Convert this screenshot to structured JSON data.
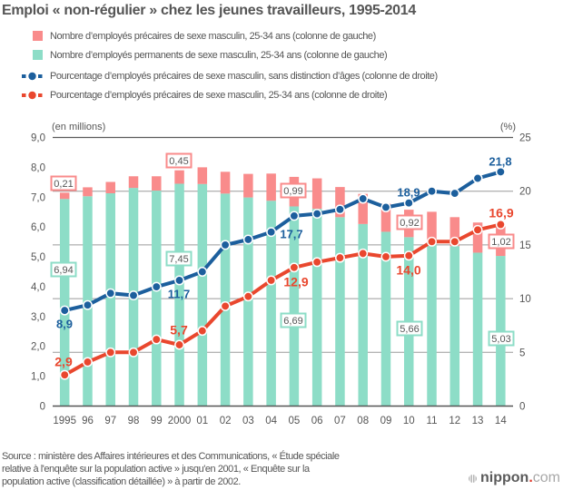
{
  "chart_data": {
    "type": "bar",
    "subtype": "stacked-bar-with-lines",
    "title": "Emploi « non-régulier » chez les jeunes travailleurs, 1995-2014",
    "categories": [
      "1995",
      "96",
      "97",
      "98",
      "99",
      "2000",
      "01",
      "02",
      "03",
      "04",
      "05",
      "06",
      "07",
      "08",
      "09",
      "10",
      "11",
      "12",
      "13",
      "14"
    ],
    "x": [
      1995,
      1996,
      1997,
      1998,
      1999,
      2000,
      2001,
      2002,
      2003,
      2004,
      2005,
      2006,
      2007,
      2008,
      2009,
      2010,
      2011,
      2012,
      2013,
      2014
    ],
    "series": [
      {
        "name": "Nombre d’employés précaires de sexe masculin, 25-34 ans (colonne de gauche)",
        "type": "bar",
        "stack": "top",
        "axis": "left",
        "unit": "millions",
        "color": "#F98B8B",
        "values": [
          0.21,
          0.3,
          0.38,
          0.39,
          0.48,
          0.45,
          0.56,
          0.73,
          0.79,
          0.91,
          0.99,
          1.02,
          1.01,
          1.01,
          0.94,
          0.92,
          1.0,
          0.97,
          1.01,
          1.02
        ]
      },
      {
        "name": "Nombre d’employés permanents de sexe masculin, 25-34 ans (colonne de gauche)",
        "type": "bar",
        "stack": "bottom",
        "axis": "left",
        "unit": "millions",
        "color": "#8DDDC7",
        "values": [
          6.94,
          7.03,
          7.13,
          7.31,
          7.22,
          7.45,
          7.44,
          7.12,
          6.99,
          6.88,
          6.69,
          6.61,
          6.33,
          6.1,
          5.84,
          5.66,
          5.51,
          5.36,
          5.14,
          5.03
        ]
      },
      {
        "name": "Pourcentage d’employés précaires de sexe masculin, sans distinction d’âges (colonne de droite)",
        "type": "line",
        "axis": "right",
        "unit": "%",
        "color": "#1C5F9D",
        "values": [
          8.9,
          9.4,
          10.5,
          10.3,
          11.1,
          11.7,
          12.5,
          15.0,
          15.5,
          16.2,
          17.7,
          17.9,
          18.3,
          19.3,
          18.5,
          18.9,
          20.0,
          19.8,
          21.2,
          21.8
        ]
      },
      {
        "name": "Pourcentage d’employés précaires de sexe masculin, 25-34 ans (colonne de droite)",
        "type": "line",
        "axis": "right",
        "unit": "%",
        "color": "#E9472E",
        "values": [
          2.9,
          4.1,
          5.0,
          5.0,
          6.2,
          5.7,
          7.0,
          9.3,
          10.2,
          11.7,
          12.9,
          13.4,
          13.8,
          14.2,
          13.9,
          14.0,
          15.3,
          15.3,
          16.4,
          16.9
        ]
      }
    ],
    "y_left": {
      "label": "(en millions)",
      "range": [
        0,
        9
      ],
      "ticks": [
        0,
        1,
        2,
        3,
        4,
        5,
        6,
        7,
        8,
        9
      ],
      "tick_labels": [
        "0",
        "1,0",
        "2,0",
        "3,0",
        "4,0",
        "5,0",
        "6,0",
        "7,0",
        "8,0",
        "9,0"
      ]
    },
    "y_right": {
      "label": "(%)",
      "range": [
        0,
        25
      ],
      "ticks": [
        0,
        5,
        10,
        15,
        20,
        25
      ],
      "tick_labels": [
        "0",
        "5",
        "10",
        "15",
        "20",
        "25"
      ]
    },
    "xlabel": "",
    "grid": true,
    "grid_axis": "right",
    "legend_position": "top",
    "grid_color": "#9A9A9A",
    "axis_color": "#555555",
    "label_text_color": "#555555",
    "annotations": [
      {
        "series": 0,
        "category": "1995",
        "label": "0,21",
        "style": "box"
      },
      {
        "series": 1,
        "category": "1995",
        "label": "6,94",
        "style": "box"
      },
      {
        "series": 0,
        "category": "2000",
        "label": "0,45",
        "style": "box"
      },
      {
        "series": 1,
        "category": "2000",
        "label": "7,45",
        "style": "box"
      },
      {
        "series": 0,
        "category": "05",
        "label": "0,99",
        "style": "box"
      },
      {
        "series": 1,
        "category": "05",
        "label": "6,69",
        "style": "box"
      },
      {
        "series": 0,
        "category": "10",
        "label": "0,92",
        "style": "box"
      },
      {
        "series": 1,
        "category": "10",
        "label": "5,66",
        "style": "box"
      },
      {
        "series": 0,
        "category": "14",
        "label": "1,02",
        "style": "box"
      },
      {
        "series": 1,
        "category": "14",
        "label": "5,03",
        "style": "box"
      },
      {
        "series": 2,
        "category": "1995",
        "label": "8,9",
        "style": "text"
      },
      {
        "series": 2,
        "category": "2000",
        "label": "11,7",
        "style": "text"
      },
      {
        "series": 2,
        "category": "05",
        "label": "17,7",
        "style": "text"
      },
      {
        "series": 2,
        "category": "10",
        "label": "18,9",
        "style": "text"
      },
      {
        "series": 2,
        "category": "14",
        "label": "21,8",
        "style": "text"
      },
      {
        "series": 3,
        "category": "1995",
        "label": "2,9",
        "style": "text"
      },
      {
        "series": 3,
        "category": "2000",
        "label": "5,7",
        "style": "text"
      },
      {
        "series": 3,
        "category": "05",
        "label": "12,9",
        "style": "text"
      },
      {
        "series": 3,
        "category": "10",
        "label": "14,0",
        "style": "text"
      },
      {
        "series": 3,
        "category": "14",
        "label": "16,9",
        "style": "text"
      }
    ]
  },
  "footer": {
    "source_lines": [
      "Source : ministère des Affaires intérieures et des Communications, « Étude spéciale",
      "relative à l'enquête sur la population active » jusqu'en 2001, « Enquête sur la",
      "population active (classification détaillée) » à partir de 2002."
    ]
  },
  "logo": {
    "icon": "striped-circle-icon",
    "name": "nippon",
    "dot": ".",
    "tld": "com",
    "dot_color": "#E03A2C"
  }
}
